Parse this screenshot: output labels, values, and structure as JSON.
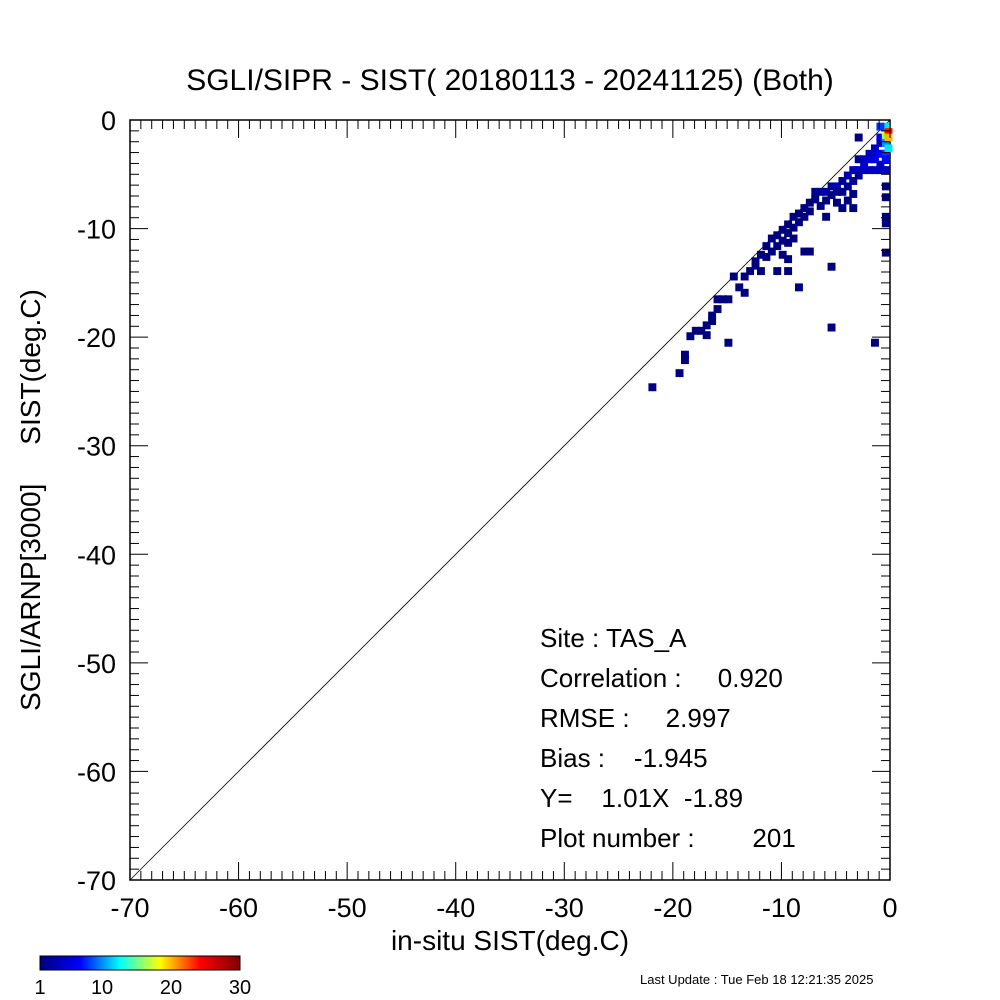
{
  "chart_data": {
    "type": "heatmap",
    "title": "SGLI/SIPR - SIST( 20180113 - 20241125) (Both)",
    "xlabel": "in-situ SIST(deg.C)",
    "ylabel": "SGLI/ARNP[3000]     SIST(deg.C)",
    "xlim": [
      -70,
      0
    ],
    "ylim": [
      -70,
      0
    ],
    "x_ticks": [
      "-70",
      "-60",
      "-50",
      "-40",
      "-30",
      "-20",
      "-10",
      "0"
    ],
    "y_ticks": [
      "0",
      "-10",
      "-20",
      "-30",
      "-40",
      "-50",
      "-60",
      "-70"
    ],
    "one_to_one_line": true,
    "bin_size": 0.5,
    "colorbar": {
      "ticks": [
        "1",
        "10",
        "20",
        "30"
      ],
      "min": 1,
      "max": 30,
      "colors": [
        "#00007f",
        "#0000ff",
        "#00ffff",
        "#ffff00",
        "#ff0000",
        "#7f0000"
      ]
    },
    "stats": {
      "site": "Site : TAS_A",
      "correlation": "Correlation :     0.920",
      "rmse": "RMSE :     2.997",
      "bias": "Bias :    -1.945",
      "equation": "Y=    1.01X  -1.89",
      "plot_number": "Plot number :        201"
    },
    "cells": [
      [
        -22.0,
        -24.5,
        1
      ],
      [
        -19.5,
        -23.2,
        1
      ],
      [
        -19.0,
        -22.0,
        1
      ],
      [
        -19.0,
        -21.5,
        1
      ],
      [
        -18.5,
        -19.8,
        1
      ],
      [
        -18.0,
        -19.3,
        1
      ],
      [
        -17.5,
        -19.3,
        1
      ],
      [
        -17.0,
        -18.8,
        1
      ],
      [
        -17.0,
        -19.7,
        1
      ],
      [
        -16.5,
        -18.4,
        1
      ],
      [
        -16.5,
        -17.9,
        1
      ],
      [
        -16.0,
        -17.3,
        1
      ],
      [
        -16.0,
        -16.4,
        1
      ],
      [
        -15.5,
        -16.4,
        1
      ],
      [
        -15.0,
        -16.4,
        1
      ],
      [
        -15.0,
        -20.4,
        1
      ],
      [
        -14.5,
        -14.3,
        1
      ],
      [
        -14.0,
        -15.3,
        1
      ],
      [
        -13.5,
        -14.3,
        1
      ],
      [
        -13.5,
        -15.8,
        1
      ],
      [
        -13.0,
        -13.8,
        1
      ],
      [
        -12.5,
        -12.9,
        1
      ],
      [
        -12.5,
        -13.3,
        1
      ],
      [
        -12.0,
        -12.3,
        1
      ],
      [
        -12.0,
        -13.8,
        1
      ],
      [
        -11.5,
        -11.5,
        1
      ],
      [
        -11.5,
        -12.5,
        1
      ],
      [
        -11.0,
        -10.8,
        1
      ],
      [
        -11.0,
        -12.0,
        1
      ],
      [
        -10.5,
        -10.5,
        1
      ],
      [
        -10.5,
        -11.5,
        1
      ],
      [
        -10.5,
        -13.8,
        1
      ],
      [
        -10.0,
        -10.0,
        1
      ],
      [
        -10.0,
        -11.0,
        1
      ],
      [
        -10.0,
        -12.3,
        1
      ],
      [
        -9.5,
        -9.5,
        1
      ],
      [
        -9.5,
        -10.3,
        1
      ],
      [
        -9.5,
        -11.2,
        1
      ],
      [
        -9.5,
        -12.7,
        1
      ],
      [
        -9.5,
        -13.8,
        1
      ],
      [
        -9.0,
        -8.8,
        1
      ],
      [
        -9.0,
        -9.8,
        1
      ],
      [
        -9.0,
        -10.8,
        1
      ],
      [
        -8.5,
        -8.5,
        1
      ],
      [
        -8.5,
        -9.3,
        1
      ],
      [
        -8.5,
        -15.3,
        1
      ],
      [
        -8.0,
        -8.0,
        1
      ],
      [
        -8.0,
        -8.8,
        1
      ],
      [
        -8.0,
        -12.0,
        1
      ],
      [
        -7.5,
        -7.5,
        1
      ],
      [
        -7.5,
        -8.3,
        1
      ],
      [
        -7.5,
        -12.0,
        1
      ],
      [
        -7.0,
        -6.5,
        2
      ],
      [
        -7.0,
        -7.2,
        1
      ],
      [
        -6.5,
        -6.5,
        2
      ],
      [
        -6.5,
        -7.8,
        1
      ],
      [
        -6.0,
        -6.5,
        3
      ],
      [
        -6.0,
        -7.3,
        1
      ],
      [
        -6.0,
        -8.8,
        1
      ],
      [
        -5.5,
        -6.0,
        2
      ],
      [
        -5.5,
        -6.8,
        1
      ],
      [
        -5.5,
        -13.4,
        1
      ],
      [
        -5.5,
        -19.0,
        1
      ],
      [
        -5.0,
        -6.0,
        4
      ],
      [
        -5.0,
        -6.5,
        2
      ],
      [
        -5.0,
        -7.5,
        1
      ],
      [
        -4.5,
        -5.5,
        2
      ],
      [
        -4.5,
        -6.5,
        1
      ],
      [
        -4.5,
        -8.0,
        1
      ],
      [
        -4.0,
        -5.0,
        3
      ],
      [
        -4.0,
        -6.0,
        2
      ],
      [
        -4.0,
        -7.3,
        1
      ],
      [
        -3.5,
        -4.5,
        4
      ],
      [
        -3.5,
        -5.5,
        2
      ],
      [
        -3.5,
        -8.0,
        1
      ],
      [
        -3.5,
        -6.7,
        1
      ],
      [
        -3.0,
        -3.5,
        2
      ],
      [
        -3.0,
        -4.5,
        4
      ],
      [
        -3.0,
        -5.0,
        2
      ],
      [
        -2.5,
        -3.5,
        4
      ],
      [
        -2.5,
        -4.0,
        4
      ],
      [
        -2.5,
        -4.5,
        4
      ],
      [
        -2.0,
        -3.0,
        3
      ],
      [
        -2.0,
        -3.5,
        5
      ],
      [
        -2.0,
        -4.5,
        4
      ],
      [
        -1.5,
        -2.5,
        4
      ],
      [
        -1.5,
        -3.0,
        5
      ],
      [
        -1.5,
        -3.5,
        5
      ],
      [
        -1.5,
        -4.5,
        4
      ],
      [
        -1.5,
        -20.4,
        1
      ],
      [
        -1.0,
        -1.5,
        6
      ],
      [
        -1.0,
        -2.0,
        4
      ],
      [
        -1.0,
        -3.0,
        6
      ],
      [
        -1.0,
        -4.0,
        4
      ],
      [
        -1.0,
        -4.5,
        4
      ],
      [
        -3.0,
        -1.5,
        1
      ],
      [
        -0.5,
        -0.5,
        12
      ],
      [
        -0.5,
        -1.0,
        18
      ],
      [
        -0.5,
        -1.5,
        16
      ],
      [
        -0.5,
        -2.0,
        10
      ],
      [
        -0.5,
        -3.0,
        8
      ],
      [
        -0.5,
        -3.5,
        7
      ],
      [
        -0.5,
        -4.5,
        4
      ],
      [
        -0.5,
        -6.0,
        1
      ],
      [
        -0.5,
        -7.0,
        1
      ],
      [
        -0.5,
        -8.8,
        1
      ],
      [
        -0.5,
        -9.4,
        1
      ],
      [
        -0.5,
        -12.1,
        1
      ],
      [
        -0.25,
        -1.0,
        24
      ],
      [
        -0.25,
        -1.5,
        20
      ],
      [
        -0.25,
        -2.5,
        12
      ],
      [
        -1.0,
        -0.5,
        8
      ]
    ]
  },
  "footer": {
    "last_update": "Last Update : Tue Feb 18 12:21:35 2025"
  }
}
